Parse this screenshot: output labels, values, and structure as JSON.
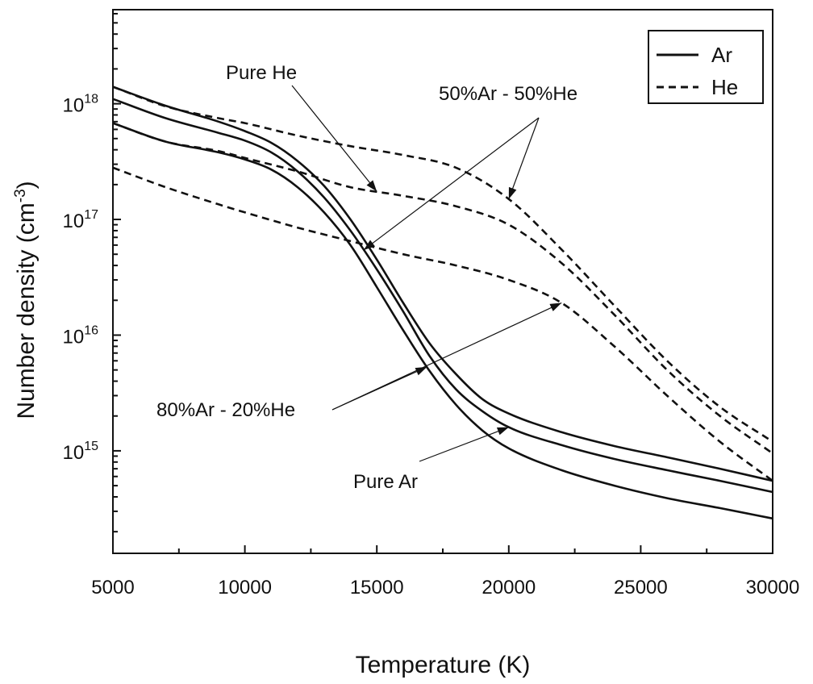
{
  "chart_data": {
    "type": "line",
    "xlabel": "Temperature (K)",
    "ylabel": "Number density (cm",
    "ylabel_sup": "-3",
    "ylabel_close": ")",
    "x_ticks": [
      "5000",
      "10000",
      "15000",
      "20000",
      "25000",
      "30000"
    ],
    "y_tick_base": "10",
    "y_tick_exps": [
      "15",
      "16",
      "17",
      "18"
    ],
    "xlim": [
      5000,
      30000
    ],
    "ylim": [
      130000000000000.0,
      6.5e+18
    ],
    "yscale": "log",
    "grid": false,
    "legend_position": "top-right",
    "legend": [
      {
        "label": "Ar",
        "style": "solid"
      },
      {
        "label": "He",
        "style": "dashed"
      }
    ],
    "annotations": {
      "pure_he": "Pure He",
      "mix_50": "50%Ar - 50%He",
      "mix_80": "80%Ar - 20%He",
      "pure_ar": "Pure Ar"
    },
    "series": [
      {
        "group": "Ar",
        "style": "solid",
        "x": [
          5000,
          7000,
          9000,
          10000,
          11000,
          12000,
          13000,
          14000,
          15000,
          16000,
          17000,
          18000,
          19000,
          20000,
          22000,
          24000,
          26000,
          28000,
          30000
        ],
        "y": [
          1.4e+18,
          9.6e+17,
          7e+17,
          5.8e+17,
          4.6e+17,
          3.2e+17,
          1.95e+17,
          1e+17,
          4.5e+16,
          1.9e+16,
          8500000000000000.0,
          4600000000000000.0,
          2800000000000000.0,
          2100000000000000.0,
          1450000000000000.0,
          1100000000000000.0,
          880000000000000.0,
          700000000000000.0,
          550000000000000.0
        ]
      },
      {
        "group": "Ar",
        "style": "solid",
        "x": [
          5000,
          7000,
          9000,
          10000,
          11000,
          12000,
          13000,
          14000,
          15000,
          16000,
          17000,
          18000,
          19000,
          20000,
          22000,
          24000,
          26000,
          28000,
          30000
        ],
        "y": [
          1.1e+18,
          7.5e+17,
          5.6e+17,
          4.8e+17,
          3.8e+17,
          2.6e+17,
          1.55e+17,
          8e+16,
          3.7e+16,
          1.6e+16,
          6600000000000000.0,
          3400000000000000.0,
          2200000000000000.0,
          1600000000000000.0,
          1120000000000000.0,
          850000000000000.0,
          680000000000000.0,
          550000000000000.0,
          440000000000000.0
        ]
      },
      {
        "group": "Ar",
        "style": "solid",
        "x": [
          5000,
          7000,
          9000,
          10000,
          11000,
          12000,
          13000,
          14000,
          15000,
          16000,
          17000,
          18000,
          19000,
          20000,
          22000,
          24000,
          26000,
          28000,
          30000
        ],
        "y": [
          6.8e+17,
          4.7e+17,
          3.8e+17,
          3.3e+17,
          2.7e+17,
          1.9e+17,
          1.15e+17,
          6e+16,
          2.6e+16,
          1.1e+16,
          4900000000000000.0,
          2500000000000000.0,
          1500000000000000.0,
          1050000000000000.0,
          680000000000000.0,
          500000000000000.0,
          390000000000000.0,
          320000000000000.0,
          260000000000000.0
        ]
      },
      {
        "group": "He",
        "style": "dashed",
        "x": [
          5000,
          7000,
          9000,
          10000,
          12000,
          14000,
          16000,
          18000,
          20000,
          22000,
          24000,
          26000,
          28000,
          30000
        ],
        "y": [
          1.4e+18,
          9.5e+17,
          7.5e+17,
          6.8e+17,
          5.3e+17,
          4.3e+17,
          3.6e+17,
          2.8e+17,
          1.5e+17,
          5.5e+16,
          1.8e+16,
          6000000000000000.0,
          2400000000000000.0,
          1200000000000000.0
        ]
      },
      {
        "group": "He",
        "style": "dashed",
        "x": [
          5000,
          7000,
          9000,
          10000,
          12000,
          14000,
          16000,
          18000,
          20000,
          22000,
          24000,
          26000,
          28000,
          30000
        ],
        "y": [
          6.8e+17,
          4.7e+17,
          3.9e+17,
          3.4e+17,
          2.6e+17,
          1.9e+17,
          1.6e+17,
          1.3e+17,
          9e+16,
          4.2e+16,
          1.5e+16,
          5000000000000000.0,
          2000000000000000.0,
          950000000000000.0
        ]
      },
      {
        "group": "He",
        "style": "dashed",
        "x": [
          5000,
          7000,
          9000,
          10000,
          12000,
          14000,
          16000,
          18000,
          20000,
          22000,
          24000,
          26000,
          28000,
          30000
        ],
        "y": [
          2.8e+17,
          1.9e+17,
          1.35e+17,
          1.15e+17,
          8.5e+16,
          6.5e+16,
          5e+16,
          4e+16,
          3e+16,
          1.9e+16,
          8000000000000000.0,
          3000000000000000.0,
          1200000000000000.0,
          550000000000000.0
        ]
      }
    ]
  }
}
